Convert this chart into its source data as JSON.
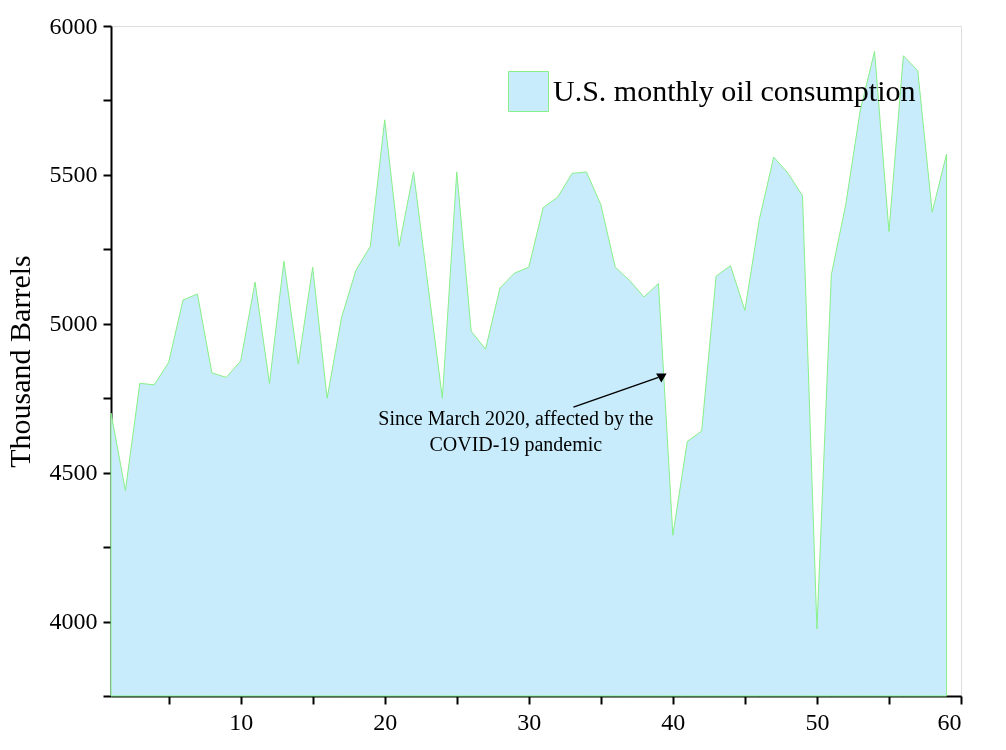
{
  "chart_data": {
    "type": "area",
    "ylabel": "Thousand Barrels",
    "x": [
      1,
      2,
      3,
      4,
      5,
      6,
      7,
      8,
      9,
      10,
      11,
      12,
      13,
      14,
      15,
      16,
      17,
      18,
      19,
      20,
      21,
      22,
      23,
      24,
      25,
      26,
      27,
      28,
      29,
      30,
      31,
      32,
      33,
      34,
      35,
      36,
      37,
      38,
      39,
      40,
      41,
      42,
      43,
      44,
      45,
      46,
      47,
      48,
      49,
      50,
      51,
      52,
      53,
      54,
      55,
      56,
      57,
      58,
      59
    ],
    "series": [
      {
        "name": "U.S. monthly oil consumption",
        "color": "#c8ecfb",
        "values": [
          4700,
          4440,
          4800,
          4795,
          4870,
          5080,
          5100,
          4835,
          4820,
          4875,
          5140,
          4800,
          5210,
          4865,
          5190,
          4750,
          5020,
          5180,
          5260,
          5685,
          5260,
          5510,
          5130,
          4750,
          5510,
          4975,
          4915,
          5120,
          5170,
          5190,
          5390,
          5425,
          5505,
          5510,
          5400,
          5190,
          5145,
          5090,
          5135,
          4290,
          4605,
          4640,
          5160,
          5195,
          5045,
          5350,
          5560,
          5505,
          5430,
          3975,
          5165,
          5400,
          5715,
          5915,
          5310,
          5900,
          5850,
          5375,
          5570
        ]
      }
    ],
    "xlim": [
      1,
      60
    ],
    "ylim": [
      3750,
      6000
    ],
    "xticks": [
      {
        "value": 5,
        "label": null
      },
      10,
      {
        "value": 15,
        "label": null
      },
      20,
      {
        "value": 25,
        "label": null
      },
      30,
      {
        "value": 35,
        "label": null
      },
      40,
      {
        "value": 45,
        "label": null
      },
      50,
      {
        "value": 55,
        "label": null
      },
      60
    ],
    "yticks": [
      {
        "value": 3750,
        "label": null
      },
      4000,
      {
        "value": 4250,
        "label": null
      },
      4500,
      {
        "value": 4750,
        "label": null
      },
      5000,
      {
        "value": 5250,
        "label": null
      },
      5500,
      {
        "value": 5750,
        "label": null
      },
      6000
    ],
    "grid": false,
    "legend": "top right",
    "annotations": [
      {
        "text": "Since March 2020, affected by the\nCOVID-19 pandemic",
        "x": 39.6,
        "y": 4830
      }
    ]
  }
}
